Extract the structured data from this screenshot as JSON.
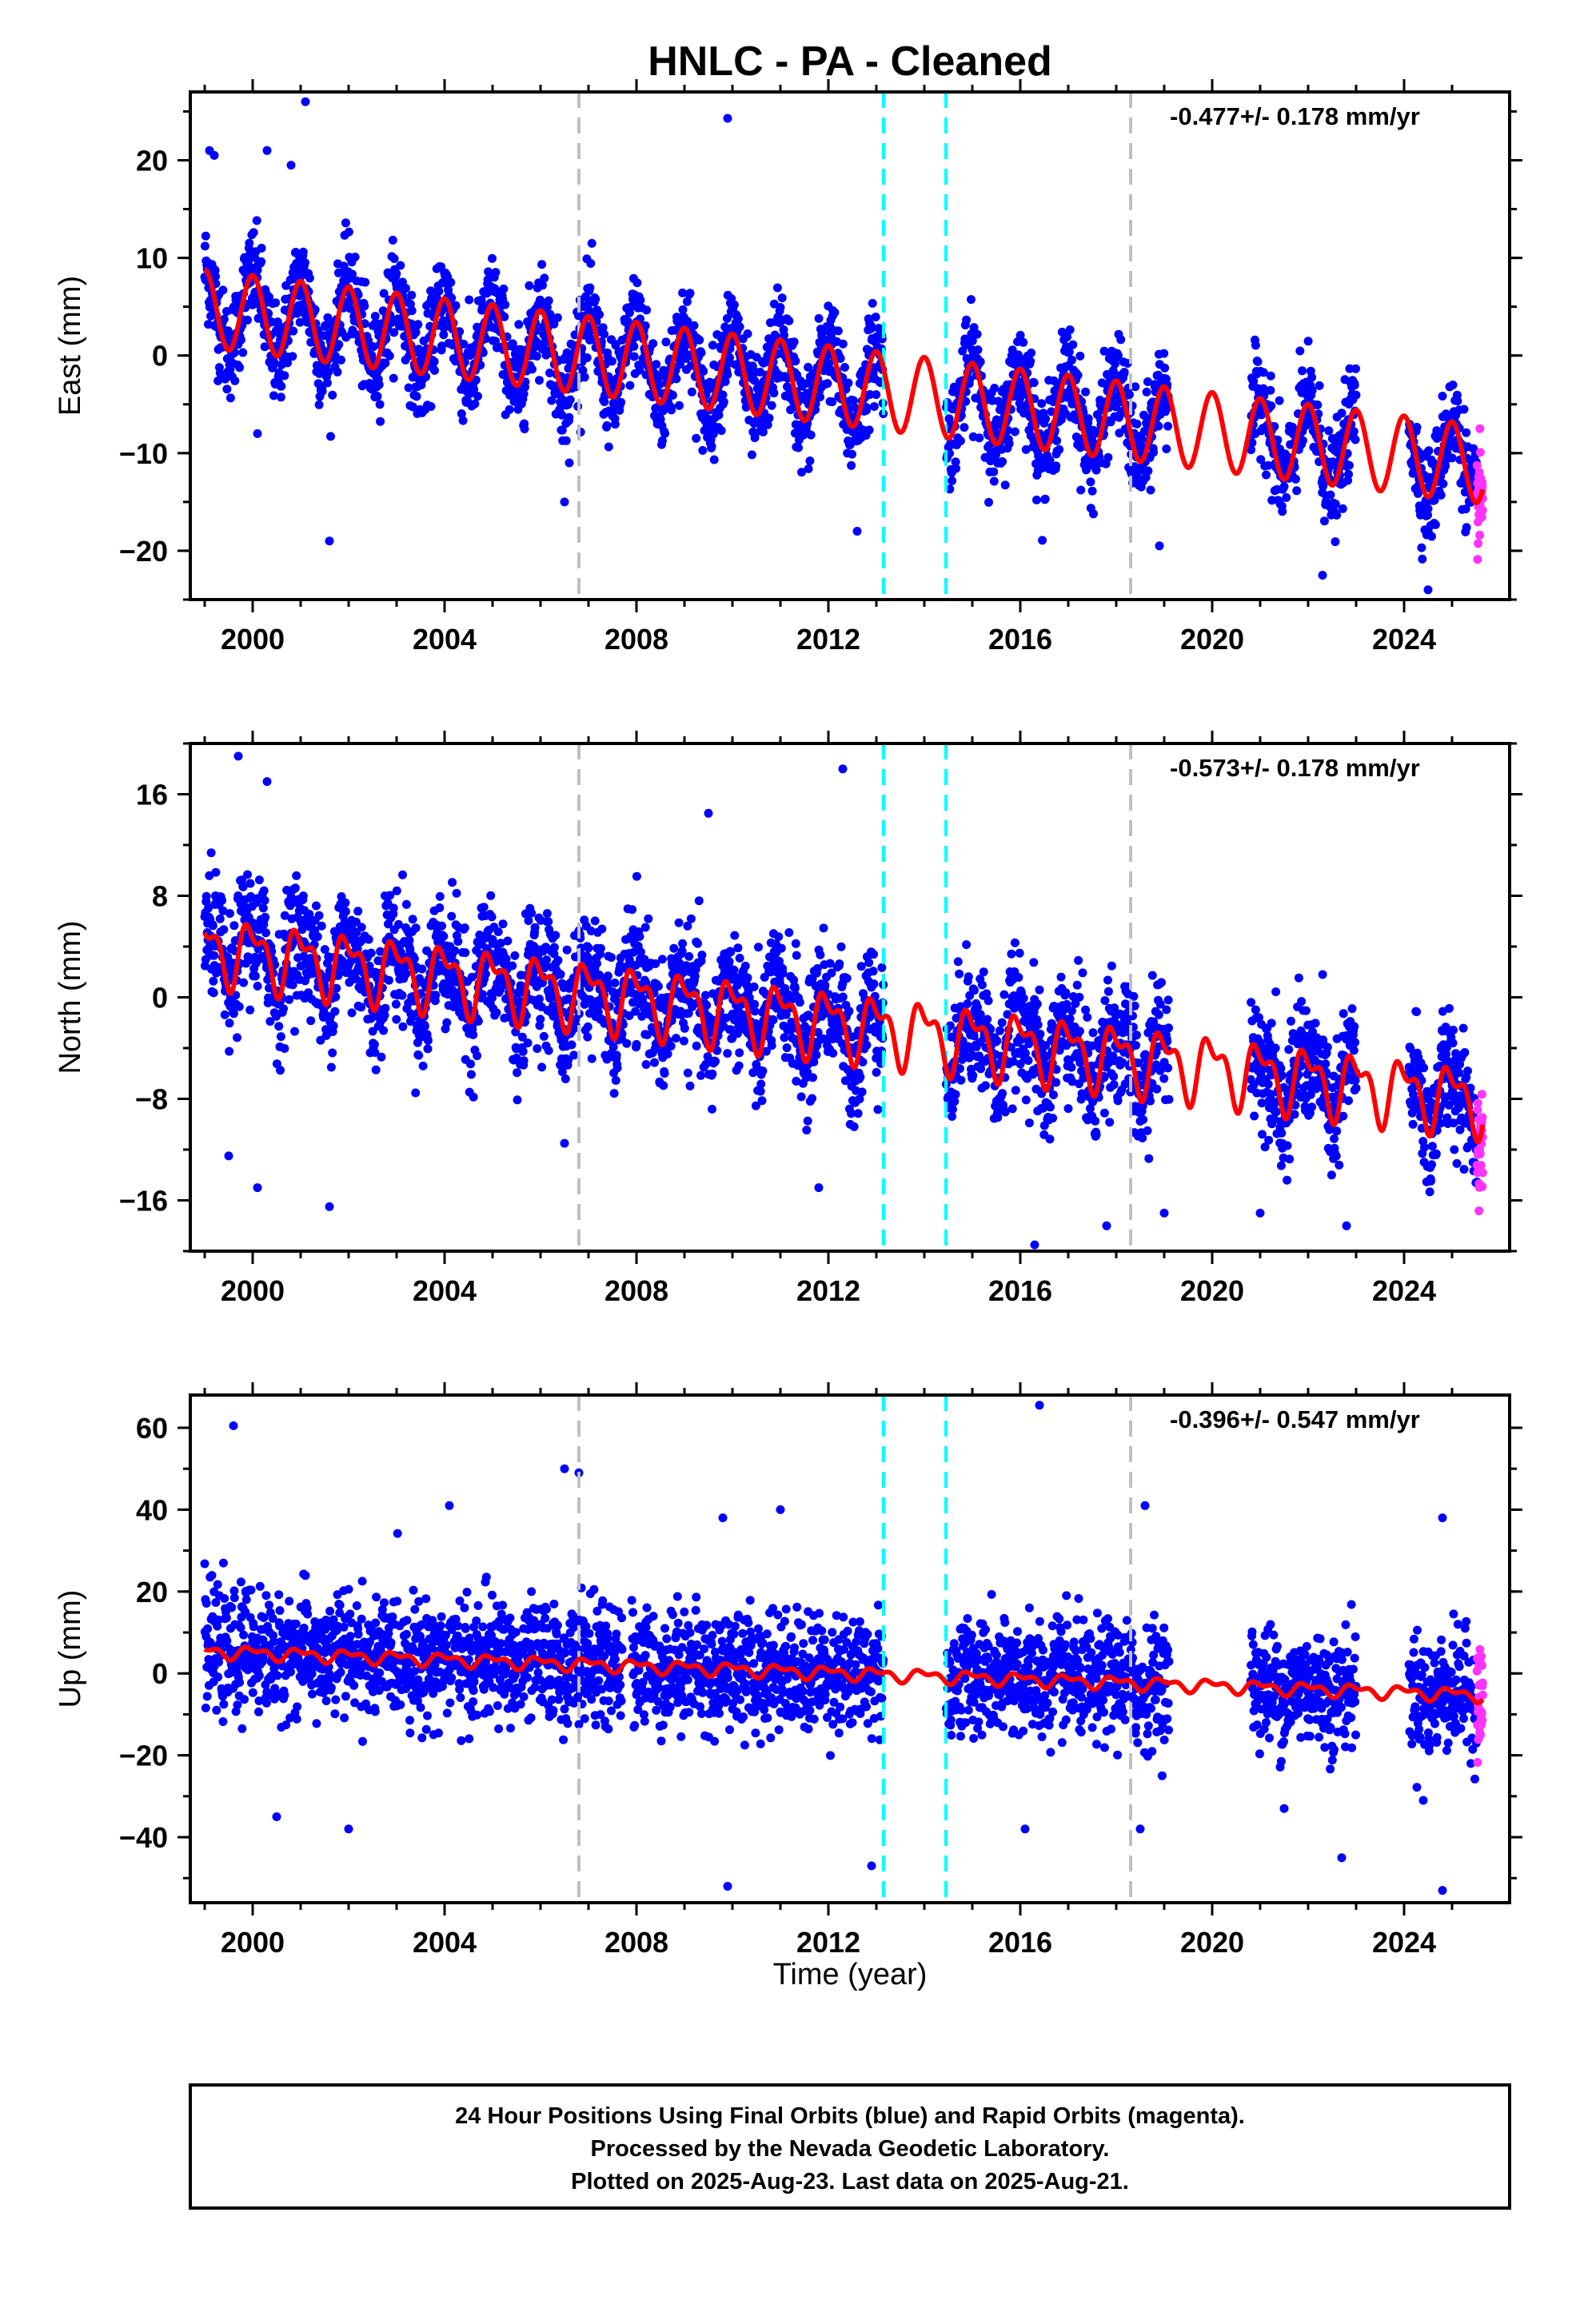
{
  "title": "HNLC  - PA - Cleaned",
  "xlabel": "Time (year)",
  "colors": {
    "final_orbits": "#0000ff",
    "rapid_orbits": "#ff33ff",
    "model_fit": "#ff0000",
    "antenna_change_lines": "#c0c0c0",
    "equipment_change_lines": "#00ffff"
  },
  "footer": {
    "line1": "24 Hour Positions Using Final Orbits (blue) and Rapid Orbits (magenta).",
    "line2": "Processed by the Nevada Geodetic Laboratory.",
    "line3": "Plotted on 2025-Aug-23. Last data on 2025-Aug-21."
  },
  "chart_data": [
    {
      "type": "scatter",
      "ylabel": "East (mm)",
      "rate_label": "-0.477+/- 0.178 mm/yr",
      "xlim": [
        1998.7,
        2026.2
      ],
      "ylim": [
        -25,
        27
      ],
      "xticks": [
        2000,
        2004,
        2008,
        2012,
        2016,
        2020,
        2024
      ],
      "xtick_labels": [
        "2000",
        "2004",
        "2008",
        "2012",
        "2016",
        "2020",
        "2024"
      ],
      "yticks": [
        -20,
        -10,
        0,
        10,
        20
      ],
      "ytick_labels": [
        "−20",
        "−10",
        "0",
        "10",
        "20"
      ],
      "gray_dashed_x": [
        2006.8,
        2018.3
      ],
      "cyan_dashed_x": [
        2013.15,
        2014.45
      ],
      "data_gaps": [
        [
          2013.15,
          2014.45
        ],
        [
          2019.1,
          2020.8
        ],
        [
          2023.0,
          2024.1
        ]
      ],
      "model": {
        "offset": 5.0,
        "trend": -0.6,
        "annual_amp": 4.0,
        "semiannual_amp": 0.0
      },
      "scatter_sd": 2.5,
      "outliers": [
        [
          1999.1,
          21
        ],
        [
          1999.2,
          20.5
        ],
        [
          2000.3,
          21
        ],
        [
          2001.1,
          26
        ],
        [
          2000.8,
          19.5
        ],
        [
          2009.9,
          24.3
        ],
        [
          2001.6,
          -19
        ],
        [
          2000.1,
          -8
        ],
        [
          2006.5,
          -15
        ],
        [
          2006.6,
          -11
        ],
        [
          2012.6,
          -18
        ],
        [
          2018.9,
          -19.5
        ],
        [
          2022.3,
          -22.5
        ],
        [
          2024.5,
          -24
        ]
      ]
    },
    {
      "type": "scatter",
      "ylabel": "North (mm)",
      "rate_label": "-0.573+/- 0.178 mm/yr",
      "xlim": [
        1998.7,
        2026.2
      ],
      "ylim": [
        -20,
        20
      ],
      "xticks": [
        2000,
        2004,
        2008,
        2012,
        2016,
        2020,
        2024
      ],
      "xtick_labels": [
        "2000",
        "2004",
        "2008",
        "2012",
        "2016",
        "2020",
        "2024"
      ],
      "yticks": [
        -16,
        -8,
        0,
        8,
        16
      ],
      "ytick_labels": [
        "−16",
        "−8",
        "0",
        "8",
        "16"
      ],
      "gray_dashed_x": [
        2006.8,
        2018.3
      ],
      "cyan_dashed_x": [
        2013.15,
        2014.45
      ],
      "data_gaps": [
        [
          2013.15,
          2014.45
        ],
        [
          2019.1,
          2020.8
        ],
        [
          2023.0,
          2024.1
        ]
      ],
      "model": {
        "offset": 4.0,
        "trend": -0.45,
        "annual_amp": 2.2,
        "semiannual_amp": 1.2
      },
      "scatter_sd": 2.4,
      "outliers": [
        [
          1999.7,
          19
        ],
        [
          2000.3,
          17
        ],
        [
          1999.5,
          -12.5
        ],
        [
          2000.1,
          -15
        ],
        [
          2001.6,
          -16.5
        ],
        [
          2012.3,
          18
        ],
        [
          2009.5,
          14.5
        ],
        [
          2006.5,
          -11.5
        ],
        [
          2016.3,
          -19.5
        ],
        [
          2017.8,
          -18
        ],
        [
          2019.0,
          -17
        ],
        [
          2021.0,
          -17
        ],
        [
          2022.8,
          -18
        ],
        [
          2011.8,
          -15
        ]
      ]
    },
    {
      "type": "scatter",
      "ylabel": "Up (mm)",
      "rate_label": "-0.396+/- 0.547 mm/yr",
      "xlim": [
        1998.7,
        2026.2
      ],
      "ylim": [
        -56,
        68
      ],
      "xticks": [
        2000,
        2004,
        2008,
        2012,
        2016,
        2020,
        2024
      ],
      "xtick_labels": [
        "2000",
        "2004",
        "2008",
        "2012",
        "2016",
        "2020",
        "2024"
      ],
      "yticks": [
        -40,
        -20,
        0,
        20,
        40,
        60
      ],
      "ytick_labels": [
        "−40",
        "−20",
        "0",
        "20",
        "40",
        "60"
      ],
      "gray_dashed_x": [
        2006.8,
        2018.3
      ],
      "cyan_dashed_x": [
        2013.15,
        2014.45
      ],
      "data_gaps": [
        [
          2007.7,
          2007.9
        ],
        [
          2013.15,
          2014.45
        ],
        [
          2019.1,
          2020.8
        ],
        [
          2023.0,
          2024.1
        ]
      ],
      "model": {
        "offset": 5.5,
        "trend": -0.4,
        "annual_amp": 1.2,
        "semiannual_amp": 0.8
      },
      "scatter_sd": 7.0,
      "outliers": [
        [
          1999.6,
          60.5
        ],
        [
          2006.5,
          50
        ],
        [
          2006.8,
          49
        ],
        [
          2016.4,
          65.5
        ],
        [
          2004.1,
          41
        ],
        [
          2009.8,
          38
        ],
        [
          2011.0,
          40
        ],
        [
          2018.6,
          41
        ],
        [
          2024.8,
          38
        ],
        [
          2000.5,
          -35
        ],
        [
          2002.0,
          -38
        ],
        [
          2009.9,
          -52
        ],
        [
          2012.9,
          -47
        ],
        [
          2016.1,
          -38
        ],
        [
          2018.5,
          -38
        ],
        [
          2021.5,
          -33
        ],
        [
          2022.7,
          -45
        ],
        [
          2024.8,
          -53
        ],
        [
          2024.4,
          -31
        ]
      ]
    }
  ]
}
